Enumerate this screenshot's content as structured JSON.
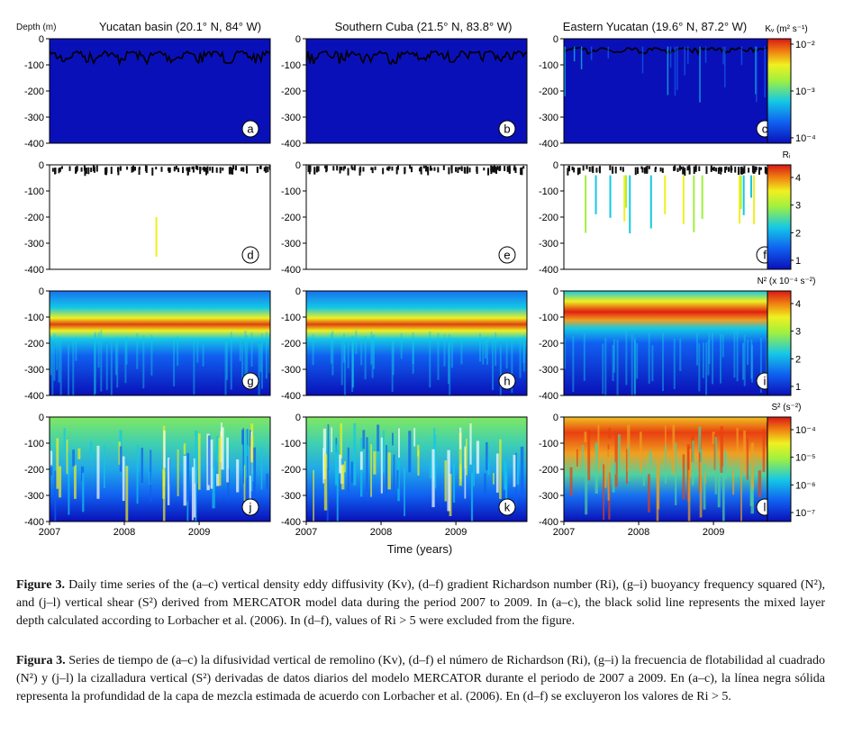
{
  "figure": {
    "depth_label": "Depth (m)",
    "time_label": "Time (years)",
    "columns": [
      {
        "title": "Yucatan basin (20.1° N, 84° W)"
      },
      {
        "title": "Southern Cuba (21.5° N, 83.8° W)"
      },
      {
        "title": "Eastern Yucatan (19.6° N, 87.2° W)"
      }
    ],
    "y_ticks": [
      "0",
      "-100",
      "-200",
      "-300",
      "-400"
    ],
    "x_ticks": [
      "2007",
      "2008",
      "2009"
    ],
    "colorbars": [
      {
        "label": "Kᵥ (m² s⁻¹)",
        "ticks": [
          "10⁻²",
          "10⁻³",
          "10⁻⁴"
        ]
      },
      {
        "label": "Rᵢ",
        "ticks": [
          "4",
          "3",
          "2",
          "1"
        ]
      },
      {
        "label": "N² (x 10⁻⁴ s⁻²)",
        "ticks": [
          "4",
          "3",
          "2",
          "1"
        ]
      },
      {
        "label": "S² (s⁻²)",
        "ticks": [
          "10⁻⁴",
          "10⁻⁵",
          "10⁻⁶",
          "10⁻⁷"
        ]
      }
    ],
    "colors": {
      "deep_blue": "#0a10b8",
      "cyan": "#14c8e6",
      "yellow": "#f0f020",
      "red": "#d81818"
    }
  },
  "chart_data": [
    {
      "type": "heatmap",
      "panel": "a",
      "column": "Yucatan basin (20.1° N, 84° W)",
      "variable": "Kv",
      "units": "m² s⁻¹",
      "x_range": [
        2007,
        2009.95
      ],
      "ylim": [
        -400,
        0
      ],
      "scale": "log",
      "mixed_layer_depth_range_m": [
        -20,
        -100
      ]
    },
    {
      "type": "heatmap",
      "panel": "b",
      "column": "Southern Cuba (21.5° N, 83.8° W)",
      "variable": "Kv",
      "units": "m² s⁻¹",
      "x_range": [
        2007,
        2009.95
      ],
      "ylim": [
        -400,
        0
      ],
      "scale": "log",
      "mixed_layer_depth_range_m": [
        -20,
        -100
      ]
    },
    {
      "type": "heatmap",
      "panel": "c",
      "column": "Eastern Yucatan (19.6° N, 87.2° W)",
      "variable": "Kv",
      "units": "m² s⁻¹",
      "x_range": [
        2007,
        2009.95
      ],
      "ylim": [
        -400,
        0
      ],
      "scale": "log",
      "mixed_layer_depth_range_m": [
        -20,
        -60
      ]
    },
    {
      "type": "heatmap",
      "panel": "d",
      "column": "Yucatan basin (20.1° N, 84° W)",
      "variable": "Ri",
      "x_range": [
        2007,
        2009.95
      ],
      "ylim": [
        -400,
        0
      ],
      "clim": [
        0,
        5
      ]
    },
    {
      "type": "heatmap",
      "panel": "e",
      "column": "Southern Cuba (21.5° N, 83.8° W)",
      "variable": "Ri",
      "x_range": [
        2007,
        2009.95
      ],
      "ylim": [
        -400,
        0
      ],
      "clim": [
        0,
        5
      ]
    },
    {
      "type": "heatmap",
      "panel": "f",
      "column": "Eastern Yucatan (19.6° N, 87.2° W)",
      "variable": "Ri",
      "x_range": [
        2007,
        2009.95
      ],
      "ylim": [
        -400,
        0
      ],
      "clim": [
        0,
        5
      ]
    },
    {
      "type": "heatmap",
      "panel": "g",
      "column": "Yucatan basin (20.1° N, 84° W)",
      "variable": "N2",
      "units": "x 10⁻⁴ s⁻²",
      "x_range": [
        2007,
        2009.95
      ],
      "ylim": [
        -400,
        0
      ],
      "clim": [
        0,
        5
      ],
      "max_depth_m": -110
    },
    {
      "type": "heatmap",
      "panel": "h",
      "column": "Southern Cuba (21.5° N, 83.8° W)",
      "variable": "N2",
      "units": "x 10⁻⁴ s⁻²",
      "x_range": [
        2007,
        2009.95
      ],
      "ylim": [
        -400,
        0
      ],
      "clim": [
        0,
        5
      ],
      "max_depth_m": -110
    },
    {
      "type": "heatmap",
      "panel": "i",
      "column": "Eastern Yucatan (19.6° N, 87.2° W)",
      "variable": "N2",
      "units": "x 10⁻⁴ s⁻²",
      "x_range": [
        2007,
        2009.95
      ],
      "ylim": [
        -400,
        0
      ],
      "clim": [
        0,
        5
      ],
      "max_depth_m": -80
    },
    {
      "type": "heatmap",
      "panel": "j",
      "column": "Yucatan basin (20.1° N, 84° W)",
      "variable": "S2",
      "units": "s⁻²",
      "x_range": [
        2007,
        2009.95
      ],
      "ylim": [
        -400,
        0
      ],
      "scale": "log"
    },
    {
      "type": "heatmap",
      "panel": "k",
      "column": "Southern Cuba (21.5° N, 83.8° W)",
      "variable": "S2",
      "units": "s⁻²",
      "x_range": [
        2007,
        2009.95
      ],
      "ylim": [
        -400,
        0
      ],
      "scale": "log"
    },
    {
      "type": "heatmap",
      "panel": "l",
      "column": "Eastern Yucatan (19.6° N, 87.2° W)",
      "variable": "S2",
      "units": "s⁻²",
      "x_range": [
        2007,
        2009.95
      ],
      "ylim": [
        -400,
        0
      ],
      "scale": "log"
    }
  ],
  "caption_en": {
    "bold": "Figure 3.",
    "text": " Daily time series of the (a–c) vertical density eddy diffusivity (Kv), (d–f) gradient Richardson number (Ri), (g–i) buoyancy frequency squared (N²), and (j–l) vertical shear (S²) derived from MERCATOR model data during the period 2007 to 2009. In (a–c), the black solid line represents the mixed layer depth calculated according to Lorbacher et al. (2006). In (d–f), values of Ri > 5 were excluded from the figure."
  },
  "caption_es": {
    "bold": "Figura 3.",
    "text": " Series de tiempo de (a–c) la difusividad vertical de remolino (Kv), (d–f) el número de Richardson (Ri), (g–i) la frecuencia de flotabilidad al cuadrado (N²) y (j–l) la cizalladura vertical (S²) derivadas de datos diarios del modelo MERCATOR durante el periodo de 2007 a 2009. En (a–c), la línea negra sólida representa la profundidad de la capa de mezcla estimada de acuerdo con Lorbacher et al. (2006). En (d–f) se excluyeron los valores de Ri > 5."
  }
}
